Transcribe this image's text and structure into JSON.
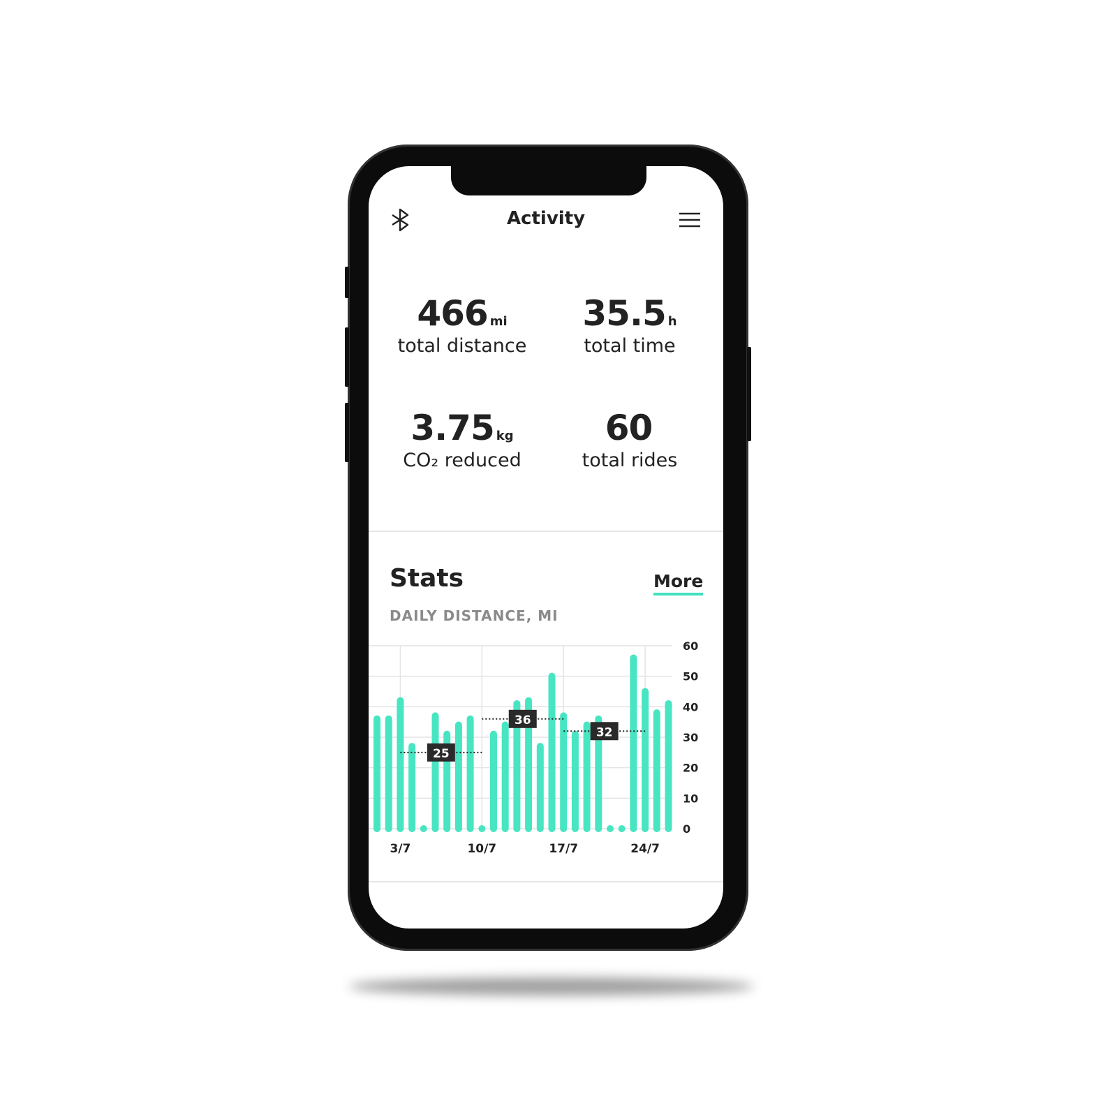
{
  "header": {
    "title": "Activity",
    "left_icon": "bluetooth-icon",
    "right_icon": "hamburger-menu-icon"
  },
  "summary": [
    {
      "value": "466",
      "unit": "mi",
      "label": "total distance"
    },
    {
      "value": "35.5",
      "unit": "h",
      "label": "total time"
    },
    {
      "value": "3.75",
      "unit": "kg",
      "label": "CO₂ reduced"
    },
    {
      "value": "60",
      "unit": "",
      "label": "total rides"
    }
  ],
  "stats": {
    "title": "Stats",
    "more_label": "More",
    "subtitle": "DAILY DISTANCE, MI"
  },
  "colors": {
    "accent": "#48e5c2",
    "label_bg": "#2a2a2a"
  },
  "chart_data": {
    "type": "bar",
    "title": "DAILY DISTANCE, MI",
    "x": [
      "1/7",
      "2/7",
      "3/7",
      "4/7",
      "5/7",
      "6/7",
      "7/7",
      "8/7",
      "9/7",
      "10/7",
      "11/7",
      "12/7",
      "13/7",
      "14/7",
      "15/7",
      "16/7",
      "17/7",
      "18/7",
      "19/7",
      "20/7",
      "21/7",
      "22/7",
      "23/7",
      "24/7",
      "25/7",
      "26/7"
    ],
    "values": [
      36,
      36,
      42,
      27,
      0,
      37,
      31,
      34,
      36,
      0,
      31,
      34,
      41,
      42,
      27,
      50,
      37,
      31,
      34,
      36,
      0,
      0,
      56,
      45,
      38,
      41
    ],
    "xticks": [
      "3/7",
      "10/7",
      "17/7",
      "24/7"
    ],
    "yticks": [
      0,
      10,
      20,
      30,
      40,
      50,
      60
    ],
    "ylim": [
      0,
      60
    ],
    "grid": true,
    "y_axis_position": "right",
    "weekly_averages": [
      {
        "from": "3/7",
        "to": "10/7",
        "value": 25,
        "label": "25"
      },
      {
        "from": "10/7",
        "to": "17/7",
        "value": 36,
        "label": "36"
      },
      {
        "from": "17/7",
        "to": "24/7",
        "value": 32,
        "label": "32"
      }
    ]
  }
}
